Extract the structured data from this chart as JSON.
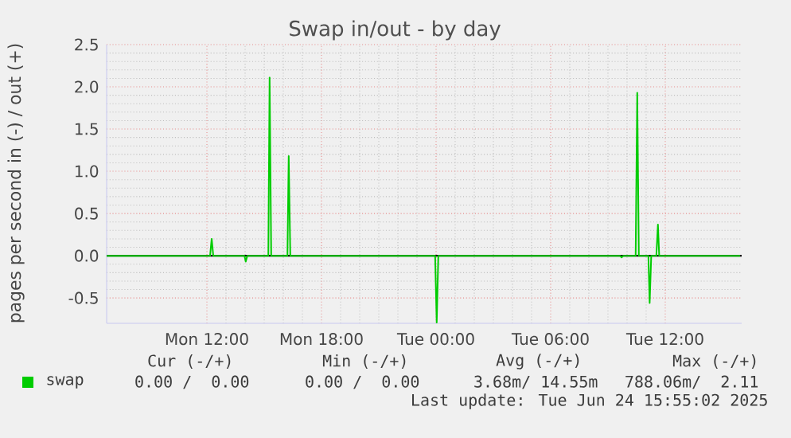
{
  "chart_data": {
    "type": "line",
    "title": "Swap in/out - by day",
    "ylabel": "pages per second in (-) / out (+)",
    "series": [
      {
        "name": "swap",
        "color": "#00cc00",
        "x": [
          "2025-06-23T06:45",
          "2025-06-23T12:10",
          "2025-06-23T12:15",
          "2025-06-23T12:20",
          "2025-06-23T13:58",
          "2025-06-23T14:02",
          "2025-06-23T14:07",
          "2025-06-23T15:13",
          "2025-06-23T15:17",
          "2025-06-23T15:22",
          "2025-06-23T16:13",
          "2025-06-23T16:17",
          "2025-06-23T16:22",
          "2025-06-23T23:57",
          "2025-06-24T00:02",
          "2025-06-24T00:07",
          "2025-06-24T09:38",
          "2025-06-24T09:43",
          "2025-06-24T09:48",
          "2025-06-24T10:27",
          "2025-06-24T10:32",
          "2025-06-24T10:37",
          "2025-06-24T11:07",
          "2025-06-24T11:11",
          "2025-06-24T11:16",
          "2025-06-24T11:32",
          "2025-06-24T11:37",
          "2025-06-24T11:41",
          "2025-06-24T15:55"
        ],
        "values": [
          0,
          0,
          0.2,
          0,
          0,
          -0.07,
          0,
          0,
          2.11,
          0,
          0,
          1.18,
          0,
          0,
          -0.79,
          0,
          0,
          -0.02,
          0,
          0,
          1.93,
          0,
          0,
          -0.56,
          0,
          0,
          0.37,
          0,
          0
        ]
      }
    ],
    "xlim": [
      "2025-06-23T06:45",
      "2025-06-24T16:00"
    ],
    "ylim": [
      -0.8,
      2.5
    ],
    "xticks": [
      {
        "value": "2025-06-23T12:00",
        "label": "Mon 12:00"
      },
      {
        "value": "2025-06-23T18:00",
        "label": "Mon 18:00"
      },
      {
        "value": "2025-06-24T00:00",
        "label": "Tue 00:00"
      },
      {
        "value": "2025-06-24T06:00",
        "label": "Tue 06:00"
      },
      {
        "value": "2025-06-24T12:00",
        "label": "Tue 12:00"
      }
    ],
    "yticks": [
      {
        "value": -0.5,
        "label": "-0.5"
      },
      {
        "value": 0,
        "label": "0.0"
      },
      {
        "value": 0.5,
        "label": "0.5"
      },
      {
        "value": 1,
        "label": "1.0"
      },
      {
        "value": 1.5,
        "label": "1.5"
      },
      {
        "value": 2,
        "label": "2.0"
      },
      {
        "value": 2.5,
        "label": "2.5"
      }
    ],
    "ref_lines": [
      {
        "axis": "y",
        "value": 0,
        "color": "#000000"
      }
    ],
    "grid": true,
    "legend": "bottom",
    "marker": "none",
    "line_style": "solid",
    "annotations": [
      "Cur (-/+)",
      "Min (-/+)",
      "Avg (-/+)",
      "Max (-/+)",
      "0.00 /  0.00",
      "0.00 /  0.00",
      "3.68m/ 14.55m",
      "788.06m/  2.11",
      "Last update: Tue Jun 24 15:55:02 2025"
    ]
  }
}
